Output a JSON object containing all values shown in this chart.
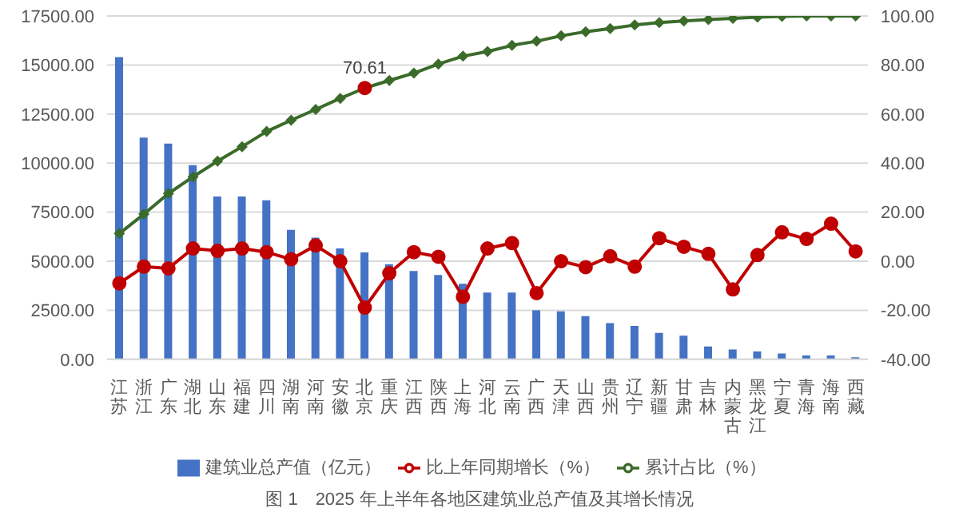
{
  "chart_data": {
    "type": "bar",
    "categories": [
      "江苏",
      "浙江",
      "广东",
      "湖北",
      "山东",
      "福建",
      "四川",
      "湖南",
      "河南",
      "安徽",
      "北京",
      "重庆",
      "江西",
      "陕西",
      "上海",
      "河北",
      "云南",
      "广西",
      "天津",
      "山西",
      "贵州",
      "辽宁",
      "新疆",
      "甘肃",
      "吉林",
      "内蒙古",
      "黑龙江",
      "宁夏",
      "青海",
      "海南",
      "西藏"
    ],
    "series": [
      {
        "name": "建筑业总产值（亿元）",
        "color": "#4472c4",
        "values": [
          15400,
          11300,
          11000,
          9900,
          8300,
          8300,
          8100,
          6600,
          6200,
          5650,
          5450,
          4850,
          4500,
          4300,
          3850,
          3400,
          3400,
          2500,
          2450,
          2200,
          1850,
          1700,
          1350,
          1200,
          650,
          500,
          400,
          300,
          200,
          200,
          100
        ]
      },
      {
        "name": "比上年同期增长（%）",
        "type": "line",
        "axis": "y2",
        "color": "#c00000",
        "marker": "circle",
        "values": [
          -9.0,
          -2.2,
          -2.9,
          5.2,
          4.2,
          5.2,
          3.7,
          0.8,
          6.4,
          0.0,
          -18.9,
          -4.9,
          3.7,
          1.8,
          -14.5,
          5.2,
          7.4,
          -13.0,
          0.0,
          -2.4,
          2.0,
          -2.2,
          9.4,
          5.9,
          3.0,
          -11.5,
          2.5,
          11.8,
          9.1,
          15.3,
          4.0
        ]
      },
      {
        "name": "累计占比（%）",
        "type": "line",
        "axis": "y2",
        "color": "#3a6b2a",
        "marker": "diamond",
        "values": [
          11.3,
          19.2,
          27.6,
          34.4,
          40.8,
          46.7,
          52.9,
          57.5,
          61.9,
          66.4,
          70.61,
          73.7,
          76.7,
          80.4,
          83.6,
          85.5,
          88.0,
          89.7,
          91.9,
          93.6,
          94.9,
          96.3,
          97.3,
          98.0,
          98.5,
          99.0,
          99.5,
          99.8,
          100,
          100,
          100
        ],
        "value_labels": [
          null,
          null,
          null,
          null,
          null,
          null,
          null,
          null,
          null,
          null,
          "70.61",
          null,
          null,
          null,
          null,
          null,
          null,
          null,
          null,
          null,
          null,
          null,
          null,
          null,
          null,
          null,
          null,
          null,
          null,
          null,
          null
        ],
        "colors": [
          "#3a6b2a",
          "#3a6b2a",
          "#3a6b2a",
          "#3a6b2a",
          "#3a6b2a",
          "#3a6b2a",
          "#3a6b2a",
          "#3a6b2a",
          "#3a6b2a",
          "#3a6b2a",
          "#c00000",
          "#3a6b2a",
          "#3a6b2a",
          "#3a6b2a",
          "#3a6b2a",
          "#3a6b2a",
          "#3a6b2a",
          "#3a6b2a",
          "#3a6b2a",
          "#3a6b2a",
          "#3a6b2a",
          "#3a6b2a",
          "#3a6b2a",
          "#3a6b2a",
          "#3a6b2a",
          "#3a6b2a",
          "#3a6b2a",
          "#3a6b2a",
          "#3a6b2a",
          "#3a6b2a",
          "#3a6b2a"
        ]
      }
    ],
    "ylim": [
      0,
      17500
    ],
    "yticks": [
      {
        "value": 0,
        "label": "0.00"
      },
      {
        "value": 2500,
        "label": "2500.00"
      },
      {
        "value": 5000,
        "label": "5000.00"
      },
      {
        "value": 7500,
        "label": "7500.00"
      },
      {
        "value": 10000,
        "label": "10000.00"
      },
      {
        "value": 12500,
        "label": "12500.00"
      },
      {
        "value": 15000,
        "label": "15000.00"
      },
      {
        "value": 17500,
        "label": "17500.00"
      }
    ],
    "y2lim": [
      -40,
      100
    ],
    "y2ticks": [
      {
        "value": -40,
        "label": "-40.00"
      },
      {
        "value": -20,
        "label": "-20.00"
      },
      {
        "value": 0,
        "label": "0.00"
      },
      {
        "value": 20,
        "label": "20.00"
      },
      {
        "value": 40,
        "label": "40.00"
      },
      {
        "value": 60,
        "label": "60.00"
      },
      {
        "value": 80,
        "label": "80.00"
      },
      {
        "value": 100,
        "label": "100.00"
      }
    ],
    "grid": "y",
    "legend": "bottom",
    "annotations": [
      "图 1　2025 年上半年各地区建筑业总产值及其增长情况"
    ]
  }
}
